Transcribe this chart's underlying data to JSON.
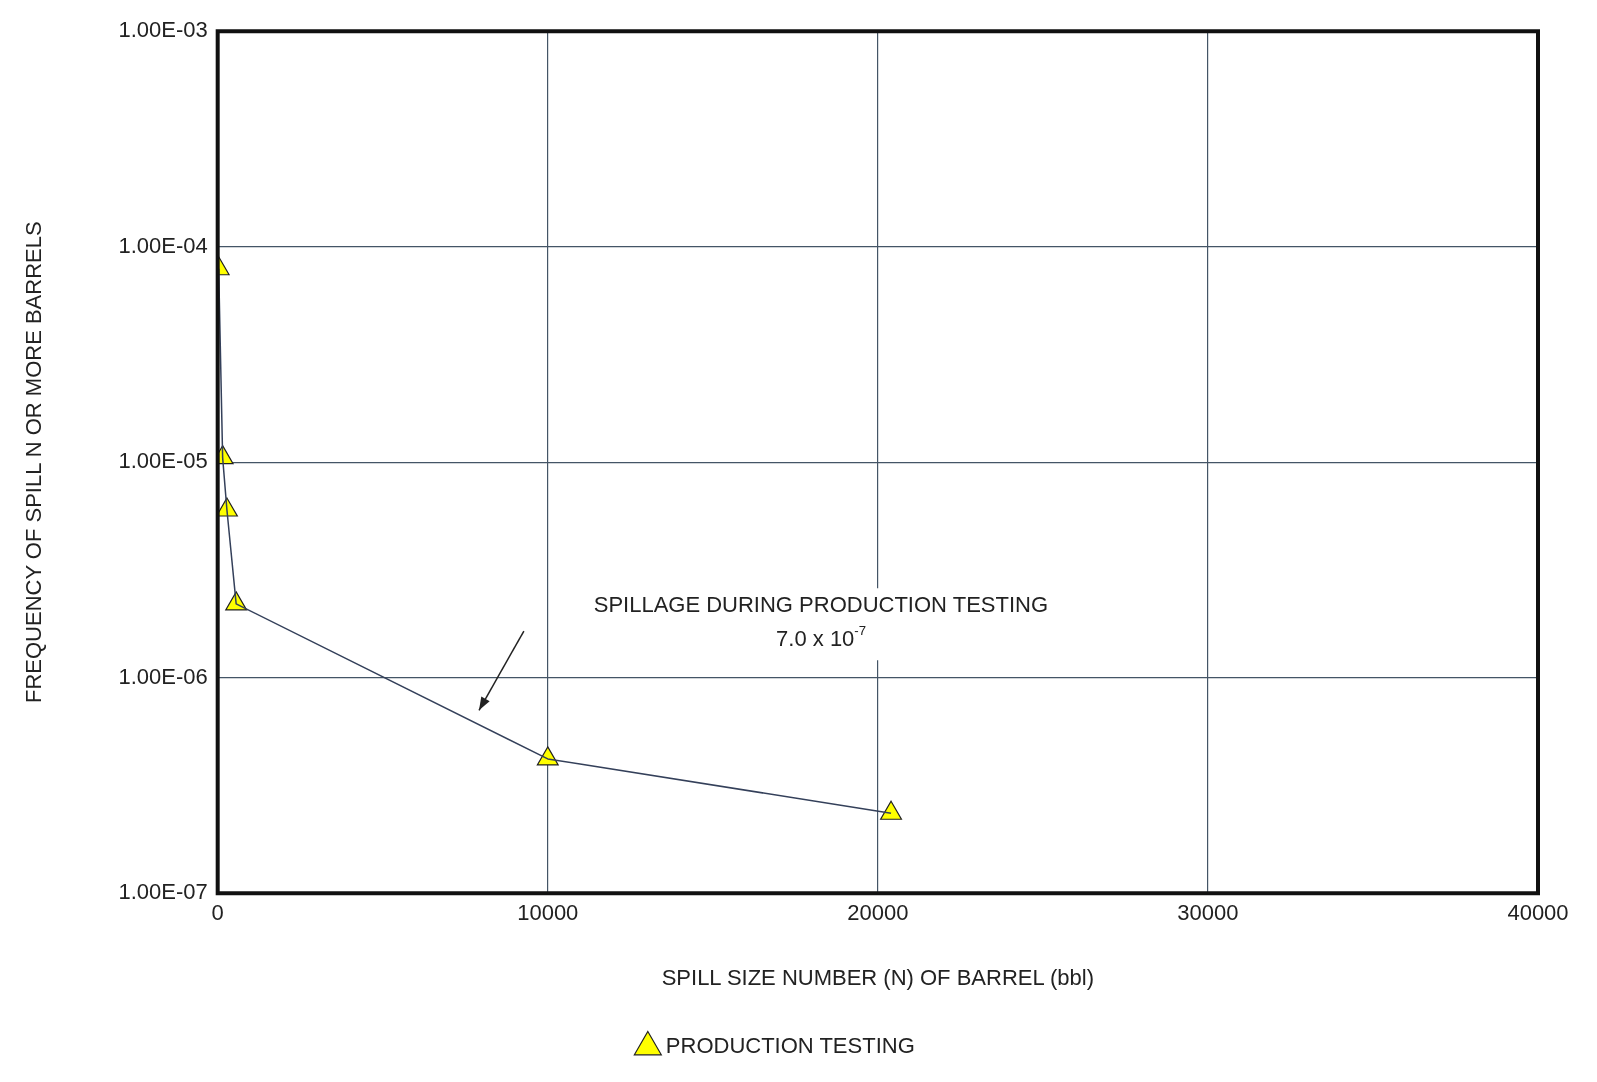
{
  "chart_data": {
    "type": "line",
    "xlabel": "SPILL SIZE NUMBER (N) OF BARREL (bbl)",
    "ylabel": "FREQUENCY OF SPILL N OR MORE BARRELS",
    "series": [
      {
        "name": "PRODUCTION TESTING",
        "color": "#ffff00",
        "x": [
          30,
          150,
          280,
          560,
          10000,
          20400
        ],
        "values": [
          7.9e-05,
          1.05e-05,
          6e-06,
          2.2e-06,
          4.2e-07,
          2.35e-07
        ]
      }
    ],
    "xlim": [
      0,
      40000
    ],
    "xticks": [
      0,
      10000,
      20000,
      30000,
      40000
    ],
    "ylim": [
      1e-07,
      0.001
    ],
    "yticks": [
      {
        "value": 1e-07,
        "label": "1.00E-07"
      },
      {
        "value": 1e-06,
        "label": "1.00E-06"
      },
      {
        "value": 1e-05,
        "label": "1.00E-05"
      },
      {
        "value": 0.0001,
        "label": "1.00E-04"
      },
      {
        "value": 0.001,
        "label": "1.00E-03"
      }
    ],
    "log": "y",
    "grid": true,
    "legend": "bottom",
    "marker": "triangle",
    "line_style": "solid",
    "annotations": [
      "SPILLAGE DURING PRODUCTION TESTING\n7.0 x 10$^{-7}$"
    ]
  }
}
